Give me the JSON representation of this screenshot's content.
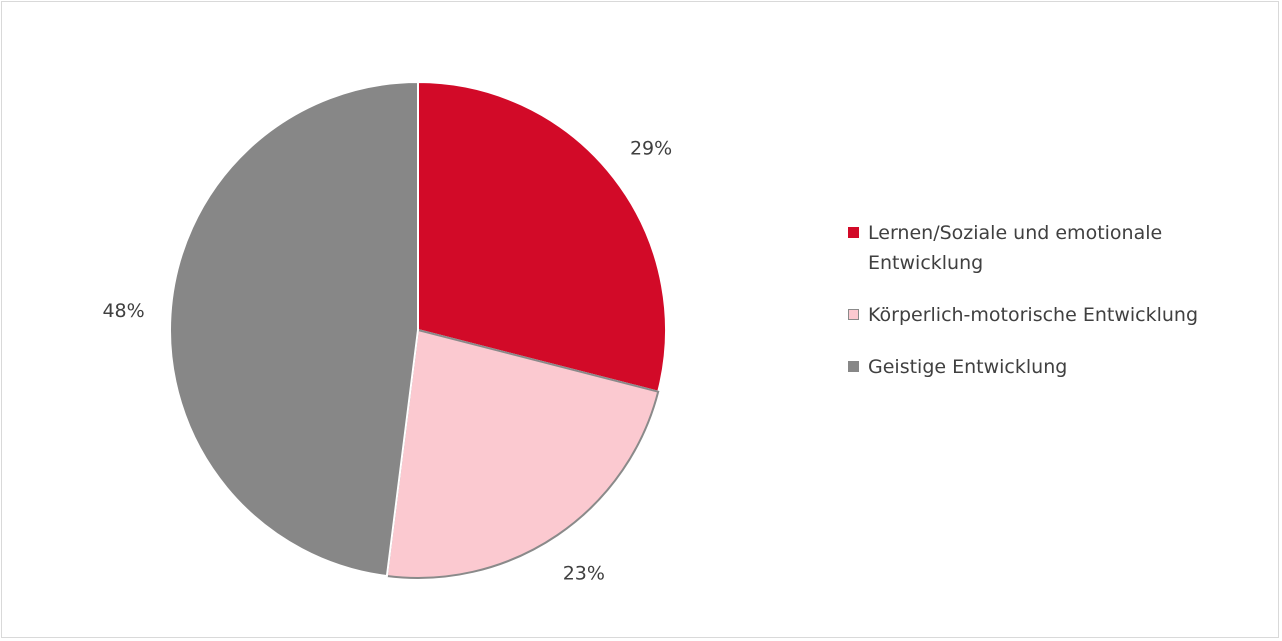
{
  "chart_data": {
    "type": "pie",
    "categories": [
      "Lernen/Soziale und emotionale Entwicklung",
      "Körperlich-motorische Entwicklung",
      "Geistige Entwicklung"
    ],
    "values": [
      29,
      23,
      48
    ],
    "value_labels": [
      "29%",
      "23%",
      "48%"
    ],
    "colors": [
      "#d20a28",
      "#fbc9d0",
      "#878787"
    ]
  }
}
